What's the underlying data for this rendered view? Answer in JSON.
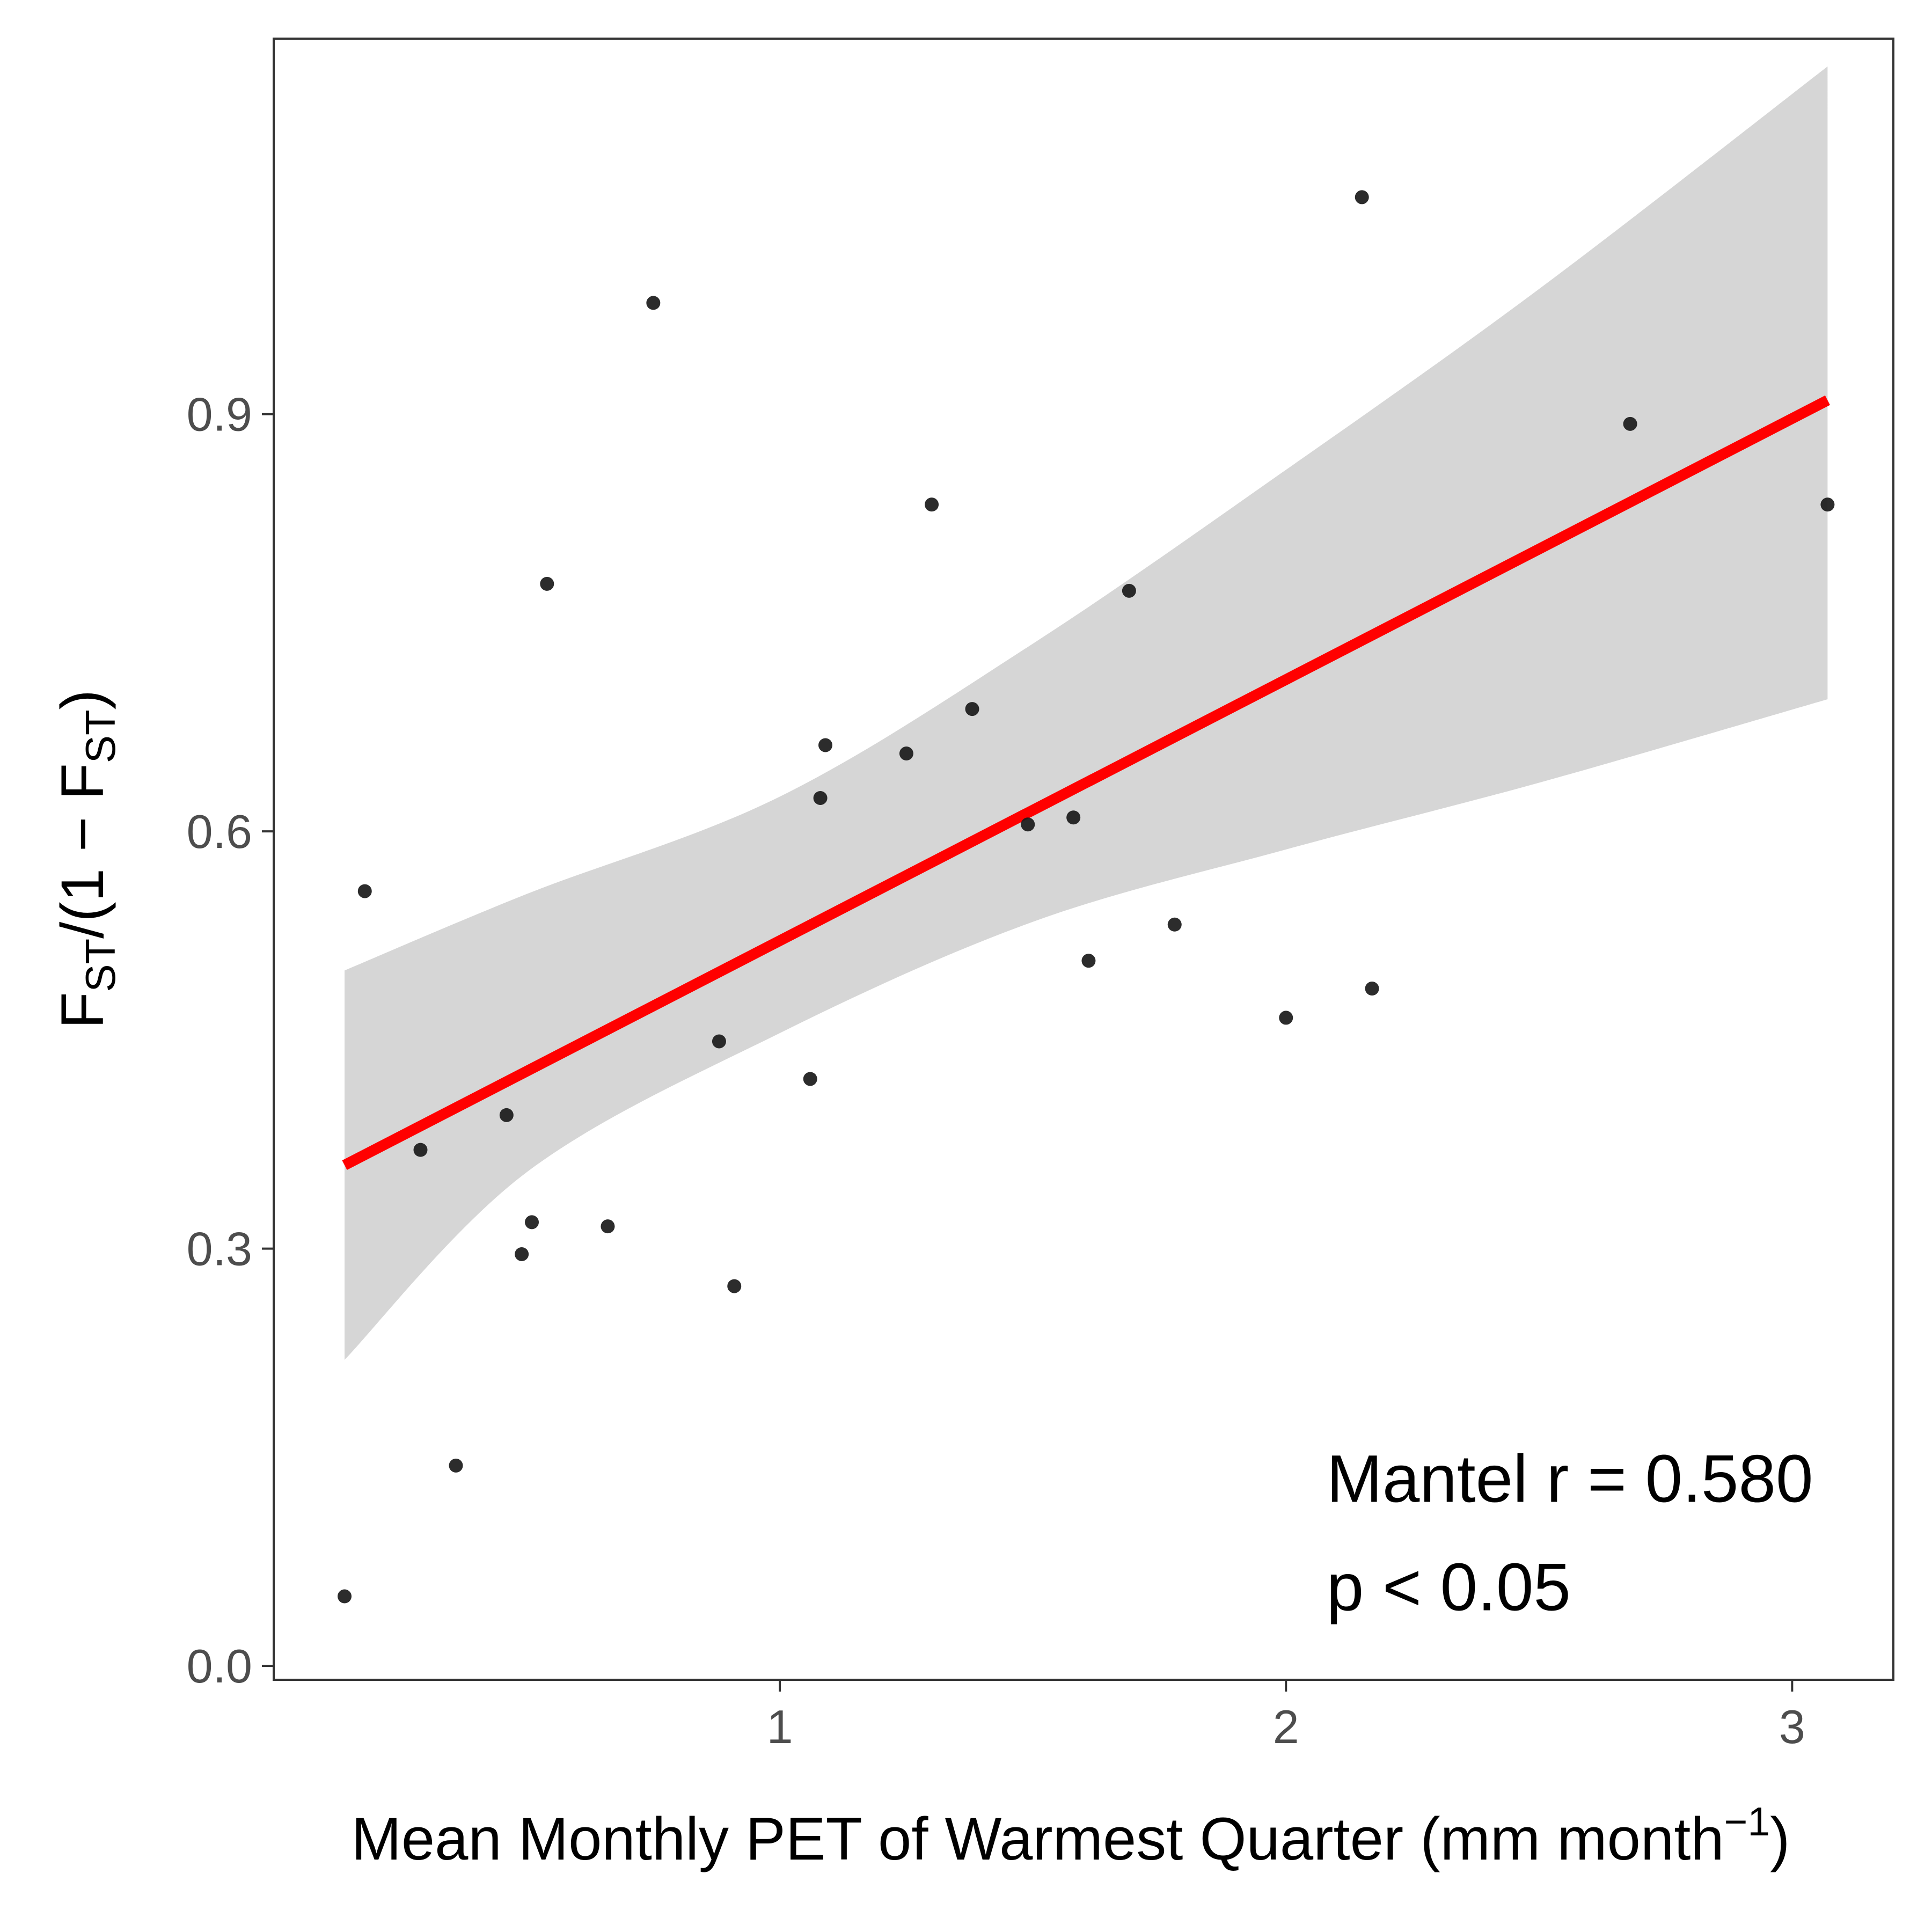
{
  "chart_data": {
    "type": "scatter",
    "xlabel": "Mean Monthly PET of Warmest Quarter (mm month",
    "xlabel_superscript": "−1",
    "ylabel": {
      "f1": "F",
      "s1": "ST",
      "mid": "/(1 − ",
      "f2": "F",
      "s2": "ST",
      "end": ")"
    },
    "xlim": [
      0.0,
      3.2
    ],
    "ylim": [
      -0.01,
      1.17
    ],
    "x_ticks": [
      {
        "value": 1,
        "label": "1"
      },
      {
        "value": 2,
        "label": "2"
      },
      {
        "value": 3,
        "label": "3"
      }
    ],
    "y_ticks": [
      {
        "value": 0.0,
        "label": "0.0"
      },
      {
        "value": 0.3,
        "label": "0.3"
      },
      {
        "value": 0.6,
        "label": "0.6"
      },
      {
        "value": 0.9,
        "label": "0.9"
      }
    ],
    "grid": false,
    "points": [
      {
        "x": 0.14,
        "y": 0.05
      },
      {
        "x": 0.18,
        "y": 0.557
      },
      {
        "x": 0.29,
        "y": 0.371
      },
      {
        "x": 0.36,
        "y": 0.144
      },
      {
        "x": 0.46,
        "y": 0.396
      },
      {
        "x": 0.49,
        "y": 0.296
      },
      {
        "x": 0.51,
        "y": 0.319
      },
      {
        "x": 0.54,
        "y": 0.778
      },
      {
        "x": 0.66,
        "y": 0.316
      },
      {
        "x": 0.75,
        "y": 0.98
      },
      {
        "x": 0.88,
        "y": 0.449
      },
      {
        "x": 0.91,
        "y": 0.273
      },
      {
        "x": 1.06,
        "y": 0.422
      },
      {
        "x": 1.08,
        "y": 0.624
      },
      {
        "x": 1.09,
        "y": 0.662
      },
      {
        "x": 1.25,
        "y": 0.656
      },
      {
        "x": 1.3,
        "y": 0.835
      },
      {
        "x": 1.38,
        "y": 0.688
      },
      {
        "x": 1.49,
        "y": 0.605
      },
      {
        "x": 1.58,
        "y": 0.61
      },
      {
        "x": 1.61,
        "y": 0.507
      },
      {
        "x": 1.69,
        "y": 0.773
      },
      {
        "x": 1.78,
        "y": 0.533
      },
      {
        "x": 2.0,
        "y": 0.466
      },
      {
        "x": 2.15,
        "y": 1.056
      },
      {
        "x": 2.17,
        "y": 0.487
      },
      {
        "x": 2.68,
        "y": 0.893
      },
      {
        "x": 3.07,
        "y": 0.835
      }
    ],
    "fit_line": {
      "x": [
        0.14,
        3.07
      ],
      "y": [
        0.36,
        0.91
      ],
      "color": "#ff0000"
    },
    "confidence_band": {
      "color": "#d6d6d6",
      "x": [
        0.14,
        0.5,
        1.0,
        1.5,
        2.0,
        2.5,
        3.07
      ],
      "upper": [
        0.5,
        0.555,
        0.625,
        0.735,
        0.86,
        0.99,
        1.15
      ],
      "lower": [
        0.22,
        0.355,
        0.455,
        0.535,
        0.587,
        0.635,
        0.695
      ]
    },
    "point_color": "#1a1a1a",
    "annotations": [
      {
        "text": "Mantel r = 0.580",
        "x": 2.08,
        "y": 0.118
      },
      {
        "text": "p < 0.05",
        "x": 2.08,
        "y": 0.04
      }
    ]
  }
}
